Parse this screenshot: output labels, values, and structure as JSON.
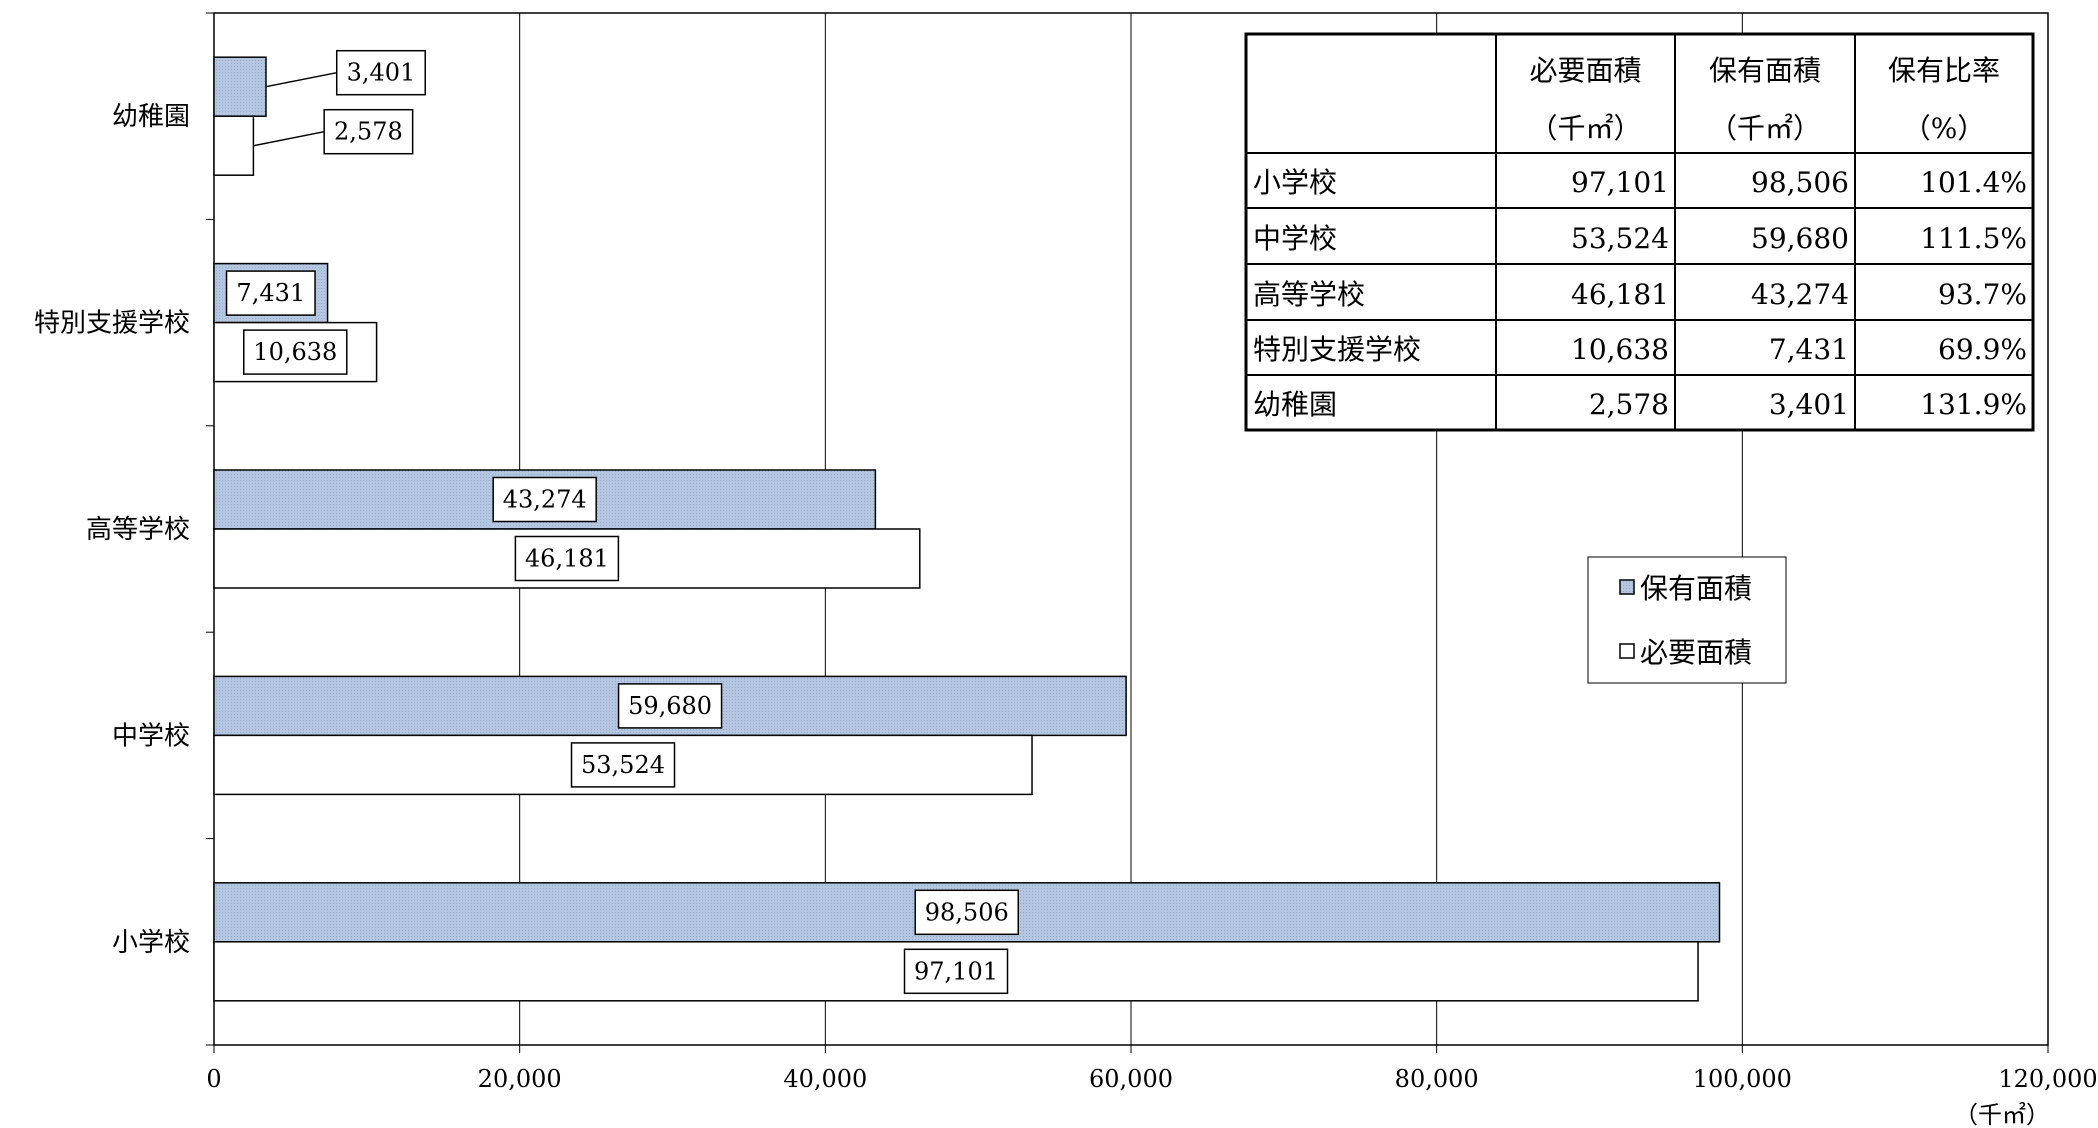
{
  "chart_data": {
    "type": "bar",
    "orientation": "horizontal",
    "categories": [
      "幼稚園",
      "特別支援学校",
      "高等学校",
      "中学校",
      "小学校"
    ],
    "series": [
      {
        "name": "保有面積",
        "values": [
          3401,
          7431,
          43274,
          59680,
          98506
        ],
        "color": "#b5c7e0",
        "labels": [
          "3,401",
          "7,431",
          "43,274",
          "59,680",
          "98,506"
        ]
      },
      {
        "name": "必要面積",
        "values": [
          2578,
          10638,
          46181,
          53524,
          97101
        ],
        "color": "#ffffff",
        "labels": [
          "2,578",
          "10,638",
          "46,181",
          "53,524",
          "97,101"
        ]
      }
    ],
    "xlim": [
      0,
      120000
    ],
    "xticks": [
      0,
      20000,
      40000,
      60000,
      80000,
      100000,
      120000
    ],
    "xtick_labels": [
      "0",
      "20,000",
      "40,000",
      "60,000",
      "80,000",
      "100,000",
      "120,000"
    ],
    "xunit": "（千㎡）",
    "grid": true,
    "legend_position": "right",
    "legend": [
      "保有面積",
      "必要面積"
    ],
    "table": {
      "headers": [
        [
          "",
          "必要面積",
          "保有面積",
          "保有比率"
        ],
        [
          "",
          "（千㎡）",
          "（千㎡）",
          "（%）"
        ]
      ],
      "rows": [
        [
          "小学校",
          "97,101",
          "98,506",
          "101.4%"
        ],
        [
          "中学校",
          "53,524",
          "59,680",
          "111.5%"
        ],
        [
          "高等学校",
          "46,181",
          "43,274",
          "93.7%"
        ],
        [
          "特別支援学校",
          "10,638",
          "7,431",
          "69.9%"
        ],
        [
          "幼稚園",
          "2,578",
          "3,401",
          "131.9%"
        ]
      ]
    }
  }
}
